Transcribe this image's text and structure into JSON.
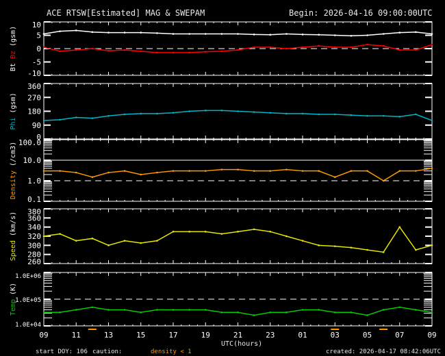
{
  "header": {
    "title": "ACE RTSW[Estimated] MAG & SWEPAM",
    "begin": "Begin: 2026-04-16 09:00:00UTC"
  },
  "footer": {
    "start_doy": "start DOY: 106",
    "caution": "caution:",
    "density_note": "density < 1",
    "created": "created: 2026-04-17 08:42:06UTC"
  },
  "colors": {
    "bt": "#ffffff",
    "bz": "#ff0000",
    "phi": "#00b4c8",
    "density": "#ff9900",
    "speed": "#e6e600",
    "temp": "#00cc00",
    "axis": "#ffffff"
  },
  "chart_data": {
    "type": "line",
    "xlabel": "UTC(hours)",
    "x_tick_labels": [
      "09",
      "11",
      "13",
      "15",
      "17",
      "19",
      "21",
      "23",
      "01",
      "03",
      "05",
      "07",
      "09"
    ],
    "x_hours_from_begin": [
      0,
      1,
      2,
      3,
      4,
      5,
      6,
      7,
      8,
      9,
      10,
      11,
      12,
      13,
      14,
      15,
      16,
      17,
      18,
      19,
      20,
      21,
      22,
      23,
      24
    ],
    "panels": [
      {
        "id": "mag",
        "ylabel_parts": [
          "Bt",
          "Bz",
          "(gsm)"
        ],
        "ylim": [
          -10,
          10
        ],
        "scale": "linear",
        "y_ticks": [
          "-10",
          "-5",
          "0",
          "5",
          "10"
        ],
        "dashed_at": 0,
        "series": [
          {
            "name": "Bt",
            "color": "#ffffff",
            "values": [
              5.5,
              6.5,
              6.8,
              6.2,
              6.0,
              6.0,
              6.0,
              5.8,
              5.5,
              5.5,
              5.5,
              5.5,
              5.5,
              5.3,
              5.2,
              5.5,
              5.3,
              5.2,
              5.0,
              4.8,
              5.0,
              5.5,
              6.0,
              6.2,
              5.5
            ]
          },
          {
            "name": "Bz",
            "color": "#ff0000",
            "values": [
              0.5,
              -1,
              -0.5,
              0,
              -0.8,
              -0.5,
              -1,
              -1.5,
              -1.5,
              -1.5,
              -1.2,
              -1,
              -0.5,
              0.5,
              0.5,
              0,
              0.5,
              1,
              0.5,
              0.5,
              1.5,
              1,
              -0.5,
              -0.5,
              1.5
            ]
          }
        ]
      },
      {
        "id": "phi",
        "ylabel_parts": [
          "Phi",
          "(gsm)"
        ],
        "ylim": [
          0,
          360
        ],
        "scale": "linear",
        "y_ticks": [
          "0",
          "90",
          "180",
          "270",
          "360"
        ],
        "series": [
          {
            "name": "Phi",
            "color": "#00b4c8",
            "values": [
              120,
              125,
              140,
              135,
              150,
              160,
              165,
              165,
              170,
              180,
              185,
              185,
              180,
              175,
              170,
              165,
              165,
              160,
              160,
              155,
              150,
              150,
              145,
              160,
              120
            ]
          }
        ]
      },
      {
        "id": "density",
        "ylabel_parts": [
          "Density",
          "(/cm3)"
        ],
        "ylim": [
          0.1,
          100
        ],
        "scale": "log",
        "y_ticks": [
          "0.1",
          "1.0",
          "10.0",
          "100.0"
        ],
        "dashed_at": 1,
        "solid_at": 10,
        "series": [
          {
            "name": "Density",
            "color": "#ff9900",
            "values": [
              3,
              3,
              2.5,
              1.5,
              2.5,
              3,
              2,
              2.5,
              3,
              3,
              3,
              3.5,
              3.5,
              3,
              3,
              3.5,
              3,
              3,
              1.5,
              3,
              3,
              1,
              3,
              3,
              4
            ]
          }
        ]
      },
      {
        "id": "speed",
        "ylabel_parts": [
          "Speed",
          "(km/s)"
        ],
        "ylim": [
          260,
          380
        ],
        "scale": "linear",
        "y_ticks": [
          "260",
          "280",
          "300",
          "320",
          "340",
          "360",
          "380"
        ],
        "series": [
          {
            "name": "Speed",
            "color": "#e6e600",
            "values": [
              320,
              325,
              310,
              315,
              300,
              310,
              305,
              310,
              330,
              330,
              330,
              325,
              330,
              335,
              330,
              320,
              310,
              300,
              298,
              295,
              290,
              285,
              340,
              290,
              300
            ]
          }
        ]
      },
      {
        "id": "temp",
        "ylabel_parts": [
          "Temp",
          "(K)"
        ],
        "ylim": [
          10000,
          1000000
        ],
        "scale": "log",
        "y_ticks": [
          "1.0E+04",
          "1.0E+05",
          "1.0E+06"
        ],
        "dashed_at": 100000,
        "series": [
          {
            "name": "Temp",
            "color": "#00cc00",
            "values": [
              32000,
              32000,
              40000,
              50000,
              40000,
              40000,
              32000,
              40000,
              40000,
              40000,
              40000,
              32000,
              32000,
              25000,
              32000,
              32000,
              40000,
              40000,
              32000,
              32000,
              25000,
              40000,
              50000,
              40000,
              32000
            ]
          }
        ]
      }
    ]
  }
}
